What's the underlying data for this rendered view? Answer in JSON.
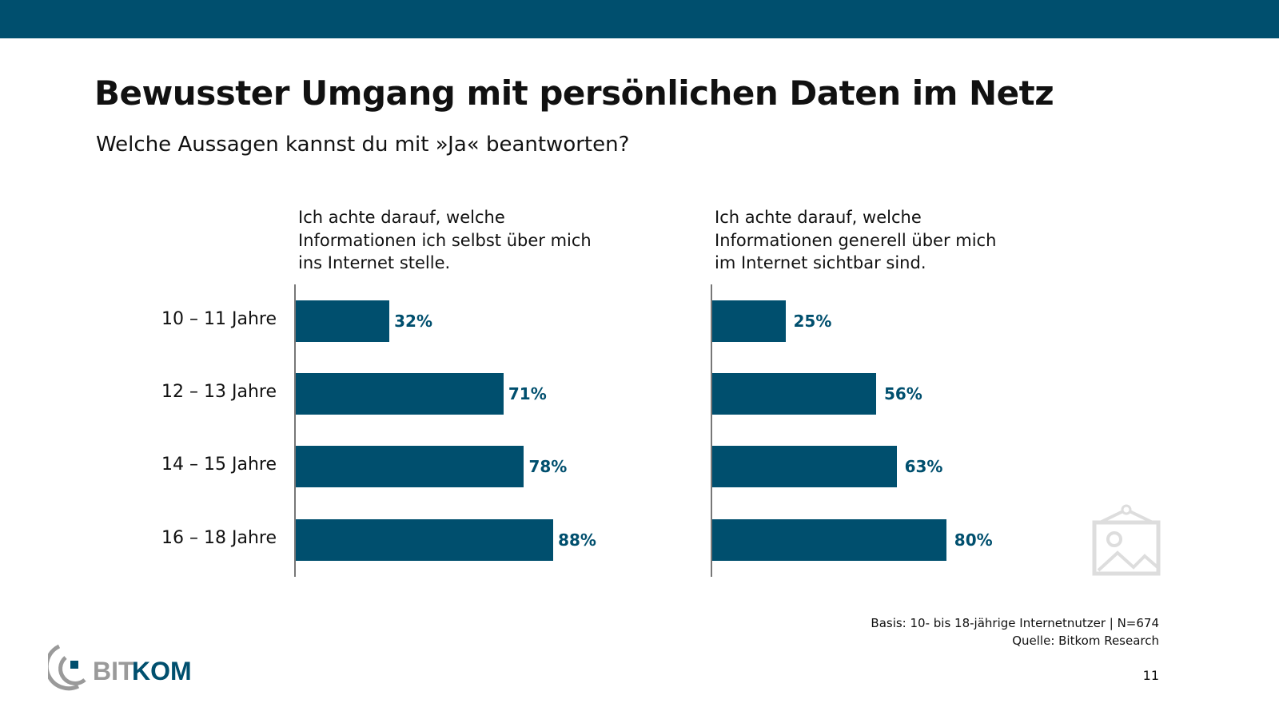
{
  "header": {
    "title": "Bewusster Umgang mit persönlichen Daten im Netz",
    "subtitle": "Welche Aussagen kannst du mit »Ja« beantworten?"
  },
  "colors": {
    "brand": "#004f6e",
    "axis": "#777777"
  },
  "chart_data": [
    {
      "type": "bar",
      "orientation": "horizontal",
      "title": "Ich achte darauf, welche Informationen ich selbst über mich ins Internet stelle.",
      "categories": [
        "10 – 11 Jahre",
        "12 – 13 Jahre",
        "14 – 15 Jahre",
        "16 – 18 Jahre"
      ],
      "values": [
        32,
        71,
        78,
        88
      ],
      "labels": [
        "32%",
        "71%",
        "78%",
        "88%"
      ],
      "xlim": [
        0,
        100
      ]
    },
    {
      "type": "bar",
      "orientation": "horizontal",
      "title": "Ich achte darauf, welche Informationen generell über mich im Internet sichtbar sind.",
      "categories": [
        "10 – 11 Jahre",
        "12 – 13 Jahre",
        "14 – 15 Jahre",
        "16 – 18 Jahre"
      ],
      "values": [
        25,
        56,
        63,
        80
      ],
      "labels": [
        "25%",
        "56%",
        "63%",
        "80%"
      ],
      "xlim": [
        0,
        100
      ]
    }
  ],
  "footer": {
    "basis": "Basis: 10- bis 18-jährige Internetnutzer | N=674",
    "source": "Quelle: Bitkom Research",
    "page": "11"
  },
  "logo": {
    "text_a": "BIT",
    "text_b": "KOM"
  }
}
